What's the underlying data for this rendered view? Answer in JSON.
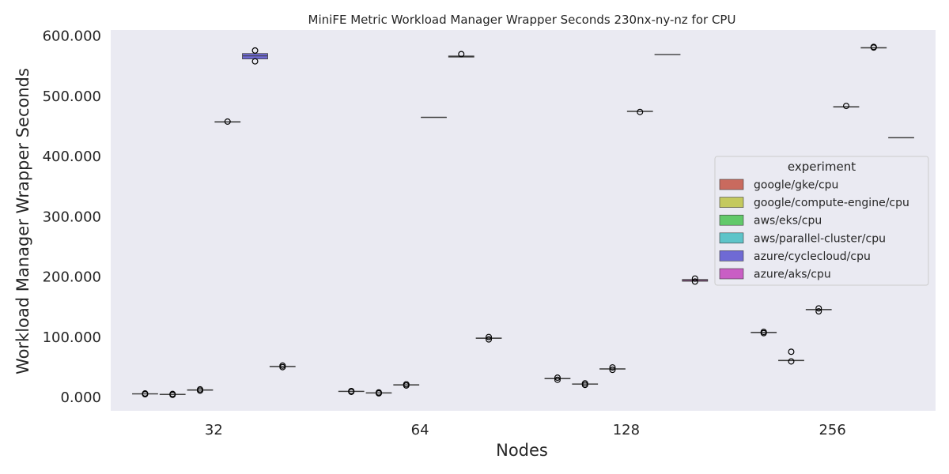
{
  "chart_data": {
    "type": "box",
    "title": "MiniFE Metric Workload Manager Wrapper Seconds 230nx-ny-nz for CPU",
    "xlabel": "Nodes",
    "ylabel": "Workload Manager Wrapper Seconds",
    "categories": [
      "32",
      "64",
      "128",
      "256"
    ],
    "ylim": [
      -22,
      610
    ],
    "yticks": [
      0,
      100,
      200,
      300,
      400,
      500,
      600
    ],
    "ytick_labels": [
      "0.000",
      "100.000",
      "200.000",
      "300.000",
      "400.000",
      "500.000",
      "600.000"
    ],
    "grid": false,
    "legend": {
      "title": "experiment",
      "placement": "right"
    },
    "series": [
      {
        "name": "google/gke/cpu",
        "color": "#c96a5e",
        "boxes": [
          {
            "category": "32",
            "q1": 6.0,
            "median": 6.2,
            "q3": 6.5,
            "outliers": [
              5.5,
              6.8
            ]
          },
          {
            "category": "64",
            "q1": 10.0,
            "median": 10.3,
            "q3": 10.6,
            "outliers": [
              9.5,
              10.8
            ]
          },
          {
            "category": "128",
            "q1": 31.0,
            "median": 31.5,
            "q3": 32.0,
            "outliers": [
              29.5,
              33.0
            ]
          },
          {
            "category": "256",
            "q1": 107.5,
            "median": 108.0,
            "q3": 108.5,
            "outliers": [
              107.0,
              109.0
            ]
          }
        ]
      },
      {
        "name": "google/compute-engine/cpu",
        "color": "#c4c95e",
        "boxes": [
          {
            "category": "32",
            "q1": 5.0,
            "median": 5.3,
            "q3": 5.6,
            "outliers": [
              4.5,
              6.0
            ]
          },
          {
            "category": "64",
            "q1": 7.5,
            "median": 7.8,
            "q3": 8.0,
            "outliers": [
              7.0,
              8.5
            ]
          },
          {
            "category": "128",
            "q1": 22.0,
            "median": 22.4,
            "q3": 22.8,
            "outliers": [
              21.0,
              23.5
            ]
          },
          {
            "category": "256",
            "q1": 61.0,
            "median": 61.5,
            "q3": 62.0,
            "outliers": [
              60.0,
              76.0
            ]
          }
        ]
      },
      {
        "name": "aws/eks/cpu",
        "color": "#62c96a",
        "boxes": [
          {
            "category": "32",
            "q1": 12.0,
            "median": 12.5,
            "q3": 13.0,
            "outliers": [
              11.5,
              13.5
            ]
          },
          {
            "category": "64",
            "q1": 20.5,
            "median": 21.0,
            "q3": 21.5,
            "outliers": [
              20.0,
              22.0
            ]
          },
          {
            "category": "128",
            "q1": 47.0,
            "median": 47.5,
            "q3": 48.0,
            "outliers": [
              46.0,
              50.0
            ]
          },
          {
            "category": "256",
            "q1": 145.5,
            "median": 146.0,
            "q3": 146.5,
            "outliers": [
              143.0,
              148.0
            ]
          }
        ]
      },
      {
        "name": "aws/parallel-cluster/cpu",
        "color": "#5ec4c9",
        "boxes": [
          {
            "category": "32",
            "q1": 457.0,
            "median": 457.5,
            "q3": 458.0,
            "outliers": [
              458.0
            ]
          },
          {
            "category": "64",
            "q1": 465.0,
            "median": 465.2,
            "q3": 465.4,
            "outliers": []
          },
          {
            "category": "128",
            "q1": 474.5,
            "median": 475.0,
            "q3": 475.5,
            "outliers": [
              474.0
            ]
          },
          {
            "category": "256",
            "q1": 482.0,
            "median": 482.5,
            "q3": 483.0,
            "outliers": [
              484.0
            ]
          }
        ]
      },
      {
        "name": "azure/cyclecloud/cpu",
        "color": "#6f6ad4",
        "boxes": [
          {
            "category": "32",
            "q1": 562.0,
            "median": 567.0,
            "q3": 571.0,
            "outliers": [
              558.0,
              576.0
            ]
          },
          {
            "category": "64",
            "q1": 565.0,
            "median": 566.0,
            "q3": 567.0,
            "outliers": [
              570.0
            ]
          },
          {
            "category": "128",
            "q1": 569.0,
            "median": 569.3,
            "q3": 569.6,
            "outliers": []
          },
          {
            "category": "256",
            "q1": 580.0,
            "median": 580.5,
            "q3": 581.0,
            "outliers": [
              581.0,
              582.0
            ]
          }
        ]
      },
      {
        "name": "azure/aks/cpu",
        "color": "#c95ec4",
        "boxes": [
          {
            "category": "32",
            "q1": 51.0,
            "median": 51.5,
            "q3": 52.0,
            "outliers": [
              50.5,
              53.0
            ]
          },
          {
            "category": "64",
            "q1": 98.0,
            "median": 98.5,
            "q3": 99.0,
            "outliers": [
              96.5,
              100.5
            ]
          },
          {
            "category": "128",
            "q1": 193.0,
            "median": 194.5,
            "q3": 196.0,
            "outliers": [
              192.5,
              197.5
            ]
          },
          {
            "category": "256",
            "q1": 431.0,
            "median": 431.3,
            "q3": 431.6,
            "outliers": []
          }
        ]
      }
    ]
  }
}
